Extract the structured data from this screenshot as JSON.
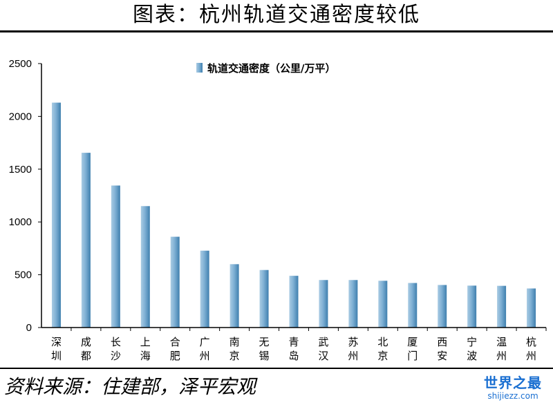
{
  "title": "图表：杭州轨道交通密度较低",
  "source": "资料来源：住建部，泽平宏观",
  "watermark": {
    "logo": "世界之最",
    "url": "shijiezz.com"
  },
  "colors": {
    "bar_light": "#a9cbe3",
    "bar_dark": "#3f7fae",
    "axis": "#000000"
  },
  "chart_data": {
    "type": "bar",
    "categories": [
      "深圳",
      "成都",
      "长沙",
      "上海",
      "合肥",
      "广州",
      "南京",
      "无锡",
      "青岛",
      "武汉",
      "苏州",
      "北京",
      "厦门",
      "西安",
      "宁波",
      "温州",
      "杭州"
    ],
    "series": [
      {
        "name": "轨道交通密度（公里/万平）",
        "values": [
          2130,
          1655,
          1345,
          1150,
          860,
          728,
          600,
          545,
          490,
          450,
          450,
          443,
          422,
          403,
          397,
          395,
          370
        ]
      }
    ],
    "yticks": [
      0,
      500,
      1000,
      1500,
      2000,
      2500
    ],
    "ylim": [
      0,
      2500
    ],
    "legend": "top-center",
    "grid": false
  }
}
